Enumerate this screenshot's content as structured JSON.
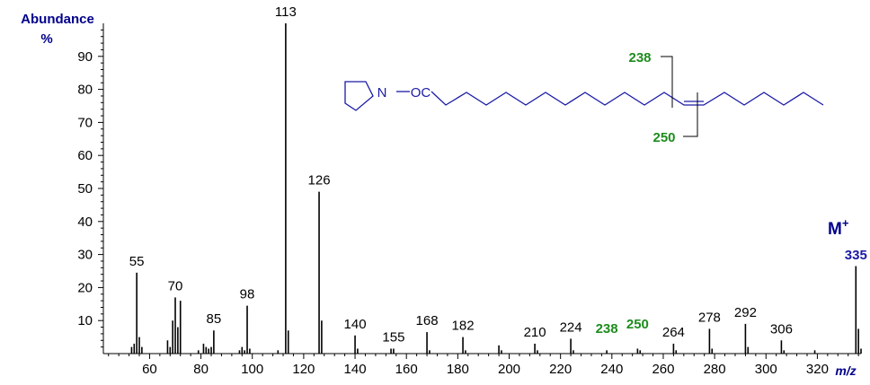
{
  "chart_data": {
    "type": "bar",
    "ylabel": [
      "Abundance",
      "%"
    ],
    "xlabel": "m/z",
    "xlim": [
      42,
      337
    ],
    "ylim": [
      0,
      100
    ],
    "xticks_major": [
      60,
      80,
      100,
      120,
      140,
      160,
      180,
      200,
      220,
      240,
      260,
      280,
      300,
      320
    ],
    "yticks": [
      10,
      20,
      30,
      40,
      50,
      60,
      70,
      80,
      90
    ],
    "peaks": [
      {
        "x": 53,
        "y": 2
      },
      {
        "x": 54,
        "y": 3
      },
      {
        "x": 55,
        "y": 24.5
      },
      {
        "x": 56,
        "y": 5
      },
      {
        "x": 57,
        "y": 2
      },
      {
        "x": 67,
        "y": 4
      },
      {
        "x": 68,
        "y": 2
      },
      {
        "x": 69,
        "y": 10
      },
      {
        "x": 70,
        "y": 17
      },
      {
        "x": 71,
        "y": 8
      },
      {
        "x": 72,
        "y": 16
      },
      {
        "x": 79,
        "y": 1
      },
      {
        "x": 81,
        "y": 3
      },
      {
        "x": 82,
        "y": 2
      },
      {
        "x": 83,
        "y": 1.5
      },
      {
        "x": 84,
        "y": 2
      },
      {
        "x": 85,
        "y": 7
      },
      {
        "x": 95,
        "y": 1
      },
      {
        "x": 96,
        "y": 2
      },
      {
        "x": 97,
        "y": 1
      },
      {
        "x": 98,
        "y": 14.5
      },
      {
        "x": 99,
        "y": 1.5
      },
      {
        "x": 110,
        "y": 1
      },
      {
        "x": 113,
        "y": 100
      },
      {
        "x": 114,
        "y": 7
      },
      {
        "x": 126,
        "y": 49
      },
      {
        "x": 127,
        "y": 10
      },
      {
        "x": 140,
        "y": 5.5
      },
      {
        "x": 141,
        "y": 1.5
      },
      {
        "x": 154,
        "y": 1.5
      },
      {
        "x": 155,
        "y": 1.5
      },
      {
        "x": 168,
        "y": 6.5
      },
      {
        "x": 169,
        "y": 1
      },
      {
        "x": 182,
        "y": 5
      },
      {
        "x": 183,
        "y": 1
      },
      {
        "x": 196,
        "y": 2.5
      },
      {
        "x": 197,
        "y": 1
      },
      {
        "x": 210,
        "y": 3
      },
      {
        "x": 211,
        "y": 1
      },
      {
        "x": 224,
        "y": 4.5
      },
      {
        "x": 225,
        "y": 1
      },
      {
        "x": 238,
        "y": 1
      },
      {
        "x": 250,
        "y": 1.5
      },
      {
        "x": 251,
        "y": 1
      },
      {
        "x": 264,
        "y": 3
      },
      {
        "x": 265,
        "y": 1
      },
      {
        "x": 278,
        "y": 7.5
      },
      {
        "x": 279,
        "y": 1.5
      },
      {
        "x": 292,
        "y": 9
      },
      {
        "x": 293,
        "y": 2
      },
      {
        "x": 306,
        "y": 4
      },
      {
        "x": 307,
        "y": 1
      },
      {
        "x": 319,
        "y": 1
      },
      {
        "x": 335,
        "y": 26.5
      },
      {
        "x": 336,
        "y": 7.5
      },
      {
        "x": 337,
        "y": 1.5
      }
    ],
    "peak_labels": [
      {
        "text": "55",
        "x": 55,
        "color": "black"
      },
      {
        "text": "70",
        "x": 70,
        "color": "black"
      },
      {
        "text": "85",
        "x": 85,
        "color": "black"
      },
      {
        "text": "98",
        "x": 98,
        "color": "black"
      },
      {
        "text": "113",
        "x": 113,
        "color": "black"
      },
      {
        "text": "126",
        "x": 126,
        "color": "black"
      },
      {
        "text": "140",
        "x": 140,
        "color": "black"
      },
      {
        "text": "155",
        "x": 155,
        "color": "black"
      },
      {
        "text": "168",
        "x": 168,
        "color": "black"
      },
      {
        "text": "182",
        "x": 182,
        "color": "black"
      },
      {
        "text": "210",
        "x": 210,
        "color": "black"
      },
      {
        "text": "224",
        "x": 224,
        "color": "black"
      },
      {
        "text": "238",
        "x": 238,
        "color": "green"
      },
      {
        "text": "250",
        "x": 250,
        "color": "green"
      },
      {
        "text": "264",
        "x": 264,
        "color": "black"
      },
      {
        "text": "278",
        "x": 278,
        "color": "black"
      },
      {
        "text": "292",
        "x": 292,
        "color": "black"
      },
      {
        "text": "306",
        "x": 306,
        "color": "black"
      },
      {
        "text": "335",
        "x": 335,
        "color": "blue"
      }
    ],
    "molecular_ion": {
      "label": "M",
      "superscript": "+",
      "value": "335"
    },
    "structure": {
      "nitrogen": "N",
      "carbonyl": "OC",
      "fragments": [
        "238",
        "250"
      ]
    }
  },
  "colors": {
    "axis": "#000000",
    "axis_label": "#00008b",
    "green": "#1e8c1e",
    "blue": "#1a1aa6",
    "structure": "#1a1aa6"
  }
}
